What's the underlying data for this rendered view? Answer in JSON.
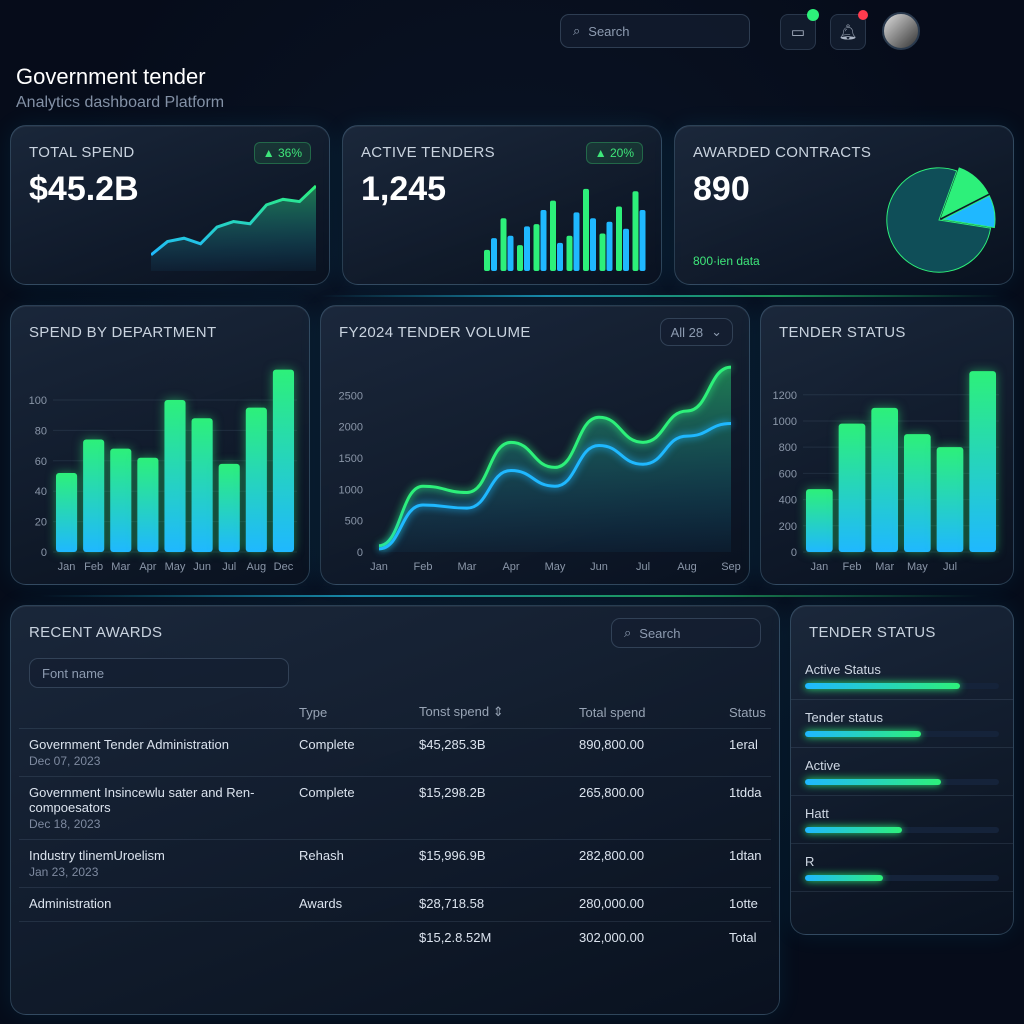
{
  "header": {
    "search_placeholder": "Search",
    "title": "Government tender",
    "subtitle": "Analytics dashboard Platform"
  },
  "icons": {
    "briefcase": "briefcase-icon",
    "bell": "bell-icon",
    "search": "search-icon"
  },
  "colors": {
    "green": "#2df07a",
    "blue": "#1fb8ff",
    "bg": "#060c1a",
    "badge": "#3ee67a",
    "notify": "#ff3b4e"
  },
  "kpis": {
    "total_spend": {
      "label": "Total Spend",
      "value": "$45.2B",
      "badge": "▲ 36%"
    },
    "active_tenders": {
      "label": "Active Tenders",
      "value": "1,245",
      "badge": "▲ 20%"
    },
    "awarded": {
      "label": "Awarded Contracts",
      "value": "890",
      "footer": "800·ien data"
    }
  },
  "chart_data": [
    {
      "id": "total_spend_spark",
      "type": "area",
      "values": [
        10,
        22,
        25,
        20,
        35,
        40,
        38,
        55,
        60,
        58,
        72
      ]
    },
    {
      "id": "active_tenders_bars",
      "type": "bar",
      "series": [
        {
          "values": [
            18,
            45,
            22,
            40,
            60,
            30,
            70,
            32,
            55,
            68
          ]
        },
        {
          "values": [
            28,
            30,
            38,
            52,
            24,
            50,
            45,
            42,
            36,
            52
          ]
        }
      ]
    },
    {
      "id": "awarded_pie",
      "type": "pie",
      "values": [
        78,
        12,
        10
      ]
    },
    {
      "id": "spend_by_department",
      "type": "bar",
      "title": "SPEND BY DEPARTMENT",
      "categories": [
        "Jan",
        "Feb",
        "Mar",
        "Apr",
        "May",
        "Jun",
        "Jul",
        "Aug",
        "Dec"
      ],
      "values": [
        52,
        74,
        68,
        62,
        100,
        88,
        58,
        95,
        120
      ],
      "yticks": [
        0,
        20,
        40,
        60,
        80,
        100
      ],
      "ylim": [
        0,
        125
      ]
    },
    {
      "id": "tender_volume",
      "type": "area",
      "title": "FY2024 TENDER VOLUME",
      "categories": [
        "Jan",
        "Feb",
        "Mar",
        "Apr",
        "May",
        "Jun",
        "Jul",
        "Aug",
        "Sep"
      ],
      "series": [
        {
          "values": [
            100,
            1050,
            950,
            1750,
            1350,
            2150,
            1750,
            2250,
            2950
          ]
        },
        {
          "values": [
            50,
            750,
            700,
            1300,
            1050,
            1700,
            1400,
            1850,
            2050
          ]
        }
      ],
      "yticks": [
        0,
        500,
        1000,
        1500,
        2000,
        2500
      ],
      "ylim": [
        0,
        3000
      ],
      "filter": "All 28"
    },
    {
      "id": "tender_status",
      "type": "bar",
      "title": "TENDER STATUS",
      "categories": [
        "Jan",
        "Feb",
        "Mar",
        "May",
        "Jul",
        ""
      ],
      "values": [
        480,
        980,
        1100,
        900,
        800,
        1380
      ],
      "yticks": [
        0,
        200,
        400,
        600,
        800,
        1000,
        1200
      ],
      "ylim": [
        0,
        1450
      ]
    }
  ],
  "awards": {
    "title": "RECENT AWARDS",
    "search_placeholder": "Search",
    "filter_placeholder": "Font name",
    "columns": [
      "Type",
      "Tonst spend",
      "Total spend",
      "Status"
    ],
    "rows": [
      {
        "name": "Government Tender Administration",
        "date": "Dec 07, 2023",
        "type": "Complete",
        "spend": "$45,285.3B",
        "total": "890,800.00",
        "status": "1eral"
      },
      {
        "name": "Government Insincewlu sater and Ren-compoesators",
        "date": "Dec 18, 2023",
        "type": "Complete",
        "spend": "$15,298.2B",
        "total": "265,800.00",
        "status": "1tdda"
      },
      {
        "name": "Industry tlinemUroelism",
        "date": "Jan 23, 2023",
        "type": "Rehash",
        "spend": "$15,996.9B",
        "total": "282,800.00",
        "status": "1dtan"
      },
      {
        "name": "Administration",
        "date": "",
        "type": "Awards",
        "spend": "$28,718.58",
        "total": "280,000.00",
        "status": "1otte"
      },
      {
        "name": "",
        "date": "",
        "type": "",
        "spend": "$15,2.8.52M",
        "total": "302,000.00",
        "status": "Total"
      }
    ]
  },
  "status_list": {
    "title": "TENDER STATUS",
    "items": [
      {
        "label": "Active Status",
        "level": 0.8
      },
      {
        "label": "Tender status",
        "level": 0.6
      },
      {
        "label": "Active",
        "level": 0.7
      },
      {
        "label": "Hatt",
        "level": 0.5
      },
      {
        "label": "R",
        "level": 0.4
      }
    ]
  }
}
